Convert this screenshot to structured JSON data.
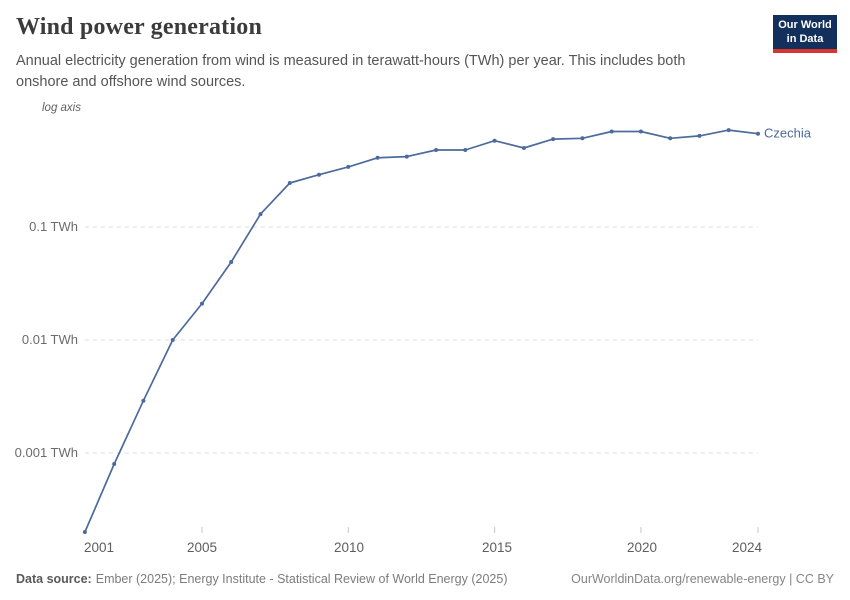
{
  "header": {
    "title": "Wind power generation",
    "subtitle": "Annual electricity generation from wind is measured in terawatt-hours (TWh) per year. This includes both onshore and offshore wind sources."
  },
  "logo": {
    "line1": "Our World",
    "line2": "in Data",
    "bg_color": "#12305b",
    "bar_color": "#d7352e"
  },
  "footer": {
    "datasource_label": "Data source:",
    "datasource_text": "Ember (2025); Energy Institute - Statistical Review of World Energy (2025)",
    "link": "OurWorldinData.org/renewable-energy | CC BY"
  },
  "chart_data": {
    "type": "line",
    "title": "Wind power generation",
    "unit": "TWh",
    "yscale": "log",
    "axis_note": "log axis",
    "grid": true,
    "xlim": [
      2001,
      2024
    ],
    "ylim": [
      0.00018,
      1
    ],
    "x": [
      2001,
      2002,
      2003,
      2004,
      2005,
      2006,
      2007,
      2008,
      2009,
      2010,
      2011,
      2012,
      2013,
      2014,
      2015,
      2016,
      2017,
      2018,
      2019,
      2020,
      2021,
      2022,
      2023,
      2024
    ],
    "series": [
      {
        "name": "Czechia",
        "color": "#4c6a9c",
        "values": [
          0.0002,
          0.0008,
          0.0029,
          0.01,
          0.021,
          0.049,
          0.13,
          0.245,
          0.29,
          0.34,
          0.41,
          0.42,
          0.48,
          0.48,
          0.58,
          0.5,
          0.6,
          0.61,
          0.7,
          0.7,
          0.61,
          0.64,
          0.72,
          0.67
        ]
      }
    ],
    "yticks": [
      {
        "value": 0.1,
        "label": "0.1 TWh"
      },
      {
        "value": 0.01,
        "label": "0.01 TWh"
      },
      {
        "value": 0.001,
        "label": "0.001 TWh"
      }
    ],
    "xticks": [
      {
        "year": 2001,
        "label": "2001",
        "tick": false
      },
      {
        "year": 2005,
        "label": "2005",
        "tick": true
      },
      {
        "year": 2010,
        "label": "2010",
        "tick": true
      },
      {
        "year": 2015,
        "label": "2015",
        "tick": true
      },
      {
        "year": 2020,
        "label": "2020",
        "tick": true
      },
      {
        "year": 2024,
        "label": "2024",
        "tick": true
      }
    ]
  }
}
